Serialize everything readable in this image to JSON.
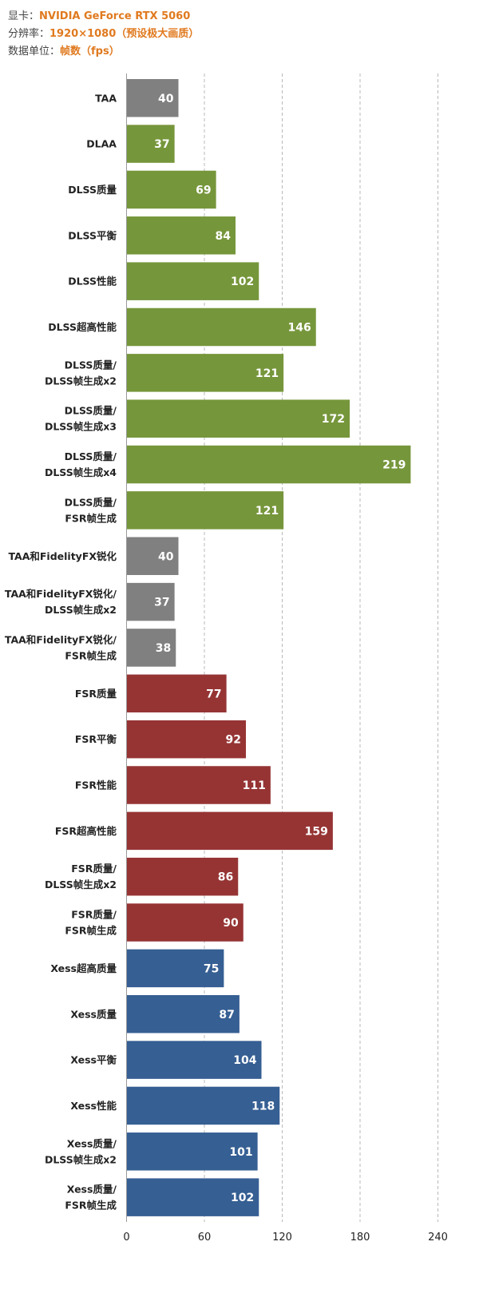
{
  "header": {
    "gpu_key": "显卡：",
    "gpu_value": "NVIDIA GeForce RTX 5060",
    "res_key": "分辨率：",
    "res_value": "1920×1080（预设极大画质）",
    "unit_key": "数据单位：",
    "unit_value": "帧数（fps）"
  },
  "colors": {
    "gray": "#808080",
    "green": "#76963b",
    "red": "#963434",
    "blue": "#365f93",
    "grid": "#b8b8b8",
    "accent": "#e07a1f"
  },
  "chart_data": {
    "type": "bar",
    "orientation": "horizontal",
    "title": "",
    "xlabel": "",
    "ylabel": "",
    "xlim": [
      0,
      240
    ],
    "xticks": [
      0,
      60,
      120,
      180,
      240
    ],
    "grid": true,
    "bars": [
      {
        "label": [
          "TAA"
        ],
        "value": 40,
        "group": "gray"
      },
      {
        "label": [
          "DLAA"
        ],
        "value": 37,
        "group": "green"
      },
      {
        "label": [
          "DLSS质量"
        ],
        "value": 69,
        "group": "green"
      },
      {
        "label": [
          "DLSS平衡"
        ],
        "value": 84,
        "group": "green"
      },
      {
        "label": [
          "DLSS性能"
        ],
        "value": 102,
        "group": "green"
      },
      {
        "label": [
          "DLSS超高性能"
        ],
        "value": 146,
        "group": "green"
      },
      {
        "label": [
          "DLSS质量/",
          "DLSS帧生成x2"
        ],
        "value": 121,
        "group": "green"
      },
      {
        "label": [
          "DLSS质量/",
          "DLSS帧生成x3"
        ],
        "value": 172,
        "group": "green"
      },
      {
        "label": [
          "DLSS质量/",
          "DLSS帧生成x4"
        ],
        "value": 219,
        "group": "green"
      },
      {
        "label": [
          "DLSS质量/",
          "FSR帧生成"
        ],
        "value": 121,
        "group": "green"
      },
      {
        "label": [
          "TAA和FidelityFX锐化"
        ],
        "value": 40,
        "group": "gray"
      },
      {
        "label": [
          "TAA和FidelityFX锐化/",
          "DLSS帧生成x2"
        ],
        "value": 37,
        "group": "gray"
      },
      {
        "label": [
          "TAA和FidelityFX锐化/",
          "FSR帧生成"
        ],
        "value": 38,
        "group": "gray"
      },
      {
        "label": [
          "FSR质量"
        ],
        "value": 77,
        "group": "red"
      },
      {
        "label": [
          "FSR平衡"
        ],
        "value": 92,
        "group": "red"
      },
      {
        "label": [
          "FSR性能"
        ],
        "value": 111,
        "group": "red"
      },
      {
        "label": [
          "FSR超高性能"
        ],
        "value": 159,
        "group": "red"
      },
      {
        "label": [
          "FSR质量/",
          "DLSS帧生成x2"
        ],
        "value": 86,
        "group": "red"
      },
      {
        "label": [
          "FSR质量/",
          "FSR帧生成"
        ],
        "value": 90,
        "group": "red"
      },
      {
        "label": [
          "Xess超高质量"
        ],
        "value": 75,
        "group": "blue"
      },
      {
        "label": [
          "Xess质量"
        ],
        "value": 87,
        "group": "blue"
      },
      {
        "label": [
          "Xess平衡"
        ],
        "value": 104,
        "group": "blue"
      },
      {
        "label": [
          "Xess性能"
        ],
        "value": 118,
        "group": "blue"
      },
      {
        "label": [
          "Xess质量/",
          "DLSS帧生成x2"
        ],
        "value": 101,
        "group": "blue"
      },
      {
        "label": [
          "Xess质量/",
          "FSR帧生成"
        ],
        "value": 102,
        "group": "blue"
      }
    ]
  }
}
